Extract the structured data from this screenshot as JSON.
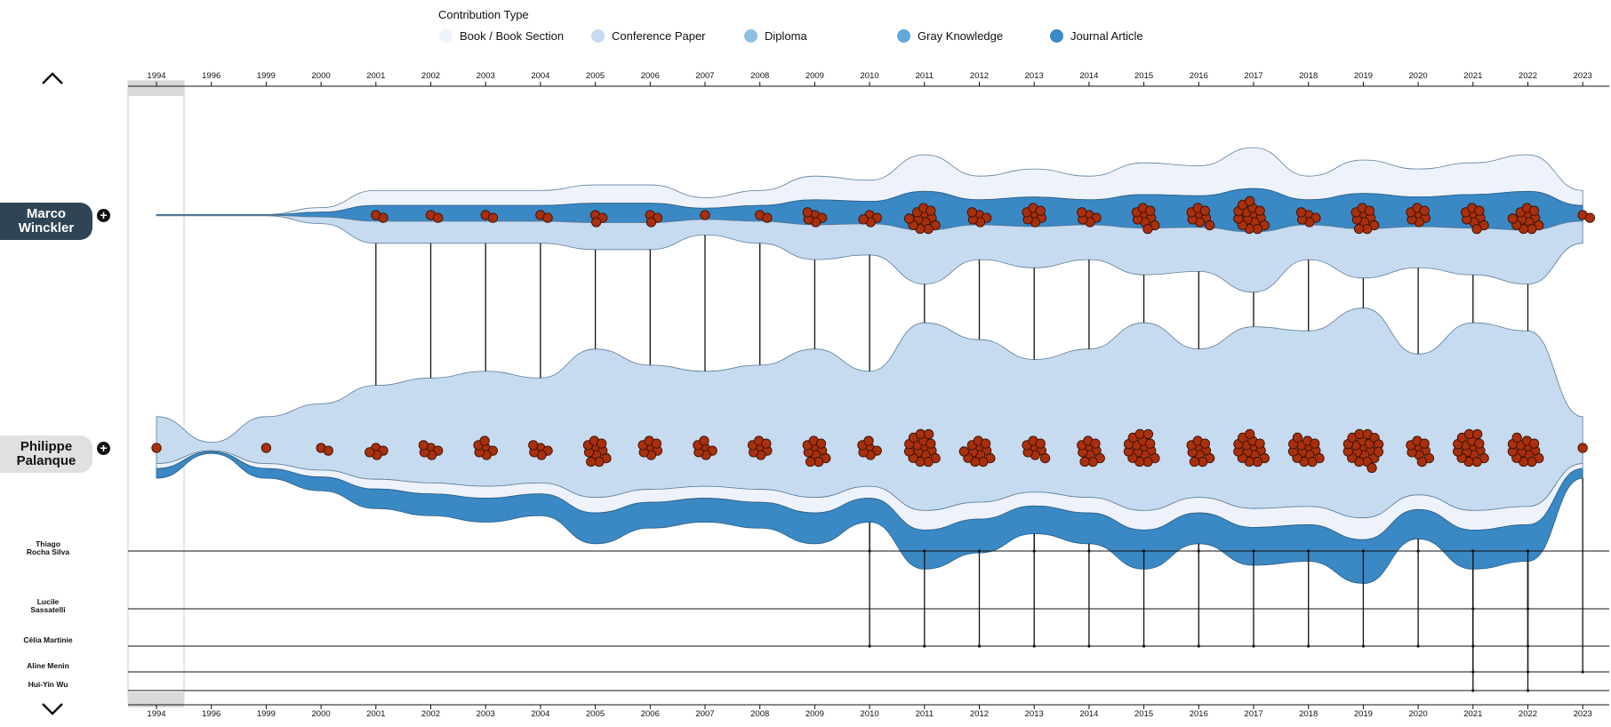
{
  "legend": {
    "title": "Contribution Type",
    "items": [
      {
        "label": "Book / Book Section",
        "color": "#eef2fb"
      },
      {
        "label": "Conference Paper",
        "color": "#c6daf0"
      },
      {
        "label": "Diploma",
        "color": "#8fbfe0"
      },
      {
        "label": "Gray Knowledge",
        "color": "#62a8d8"
      },
      {
        "label": "Journal Article",
        "color": "#3a88c4"
      }
    ]
  },
  "authors": {
    "main": {
      "name_line1": "Marco",
      "name_line2": "Winckler"
    },
    "second": {
      "name_line1": "Philippe",
      "name_line2": "Palanque"
    },
    "coauthors": [
      {
        "line1": "Thiago",
        "line2": "Rocha Silva"
      },
      {
        "line1": "Lucile",
        "line2": "Sassatelli"
      },
      {
        "line1": "Célia Martinie",
        "line2": ""
      },
      {
        "line1": "Aline Menin",
        "line2": ""
      },
      {
        "line1": "Hui-Yin Wu",
        "line2": ""
      }
    ]
  },
  "controls": {
    "plus_symbol": "+"
  },
  "chart_data": {
    "type": "area",
    "description_type": "stream-timeline",
    "years": [
      "1994",
      "1996",
      "1999",
      "2000",
      "2001",
      "2002",
      "2003",
      "2004",
      "2005",
      "2006",
      "2007",
      "2008",
      "2009",
      "2010",
      "2011",
      "2012",
      "2013",
      "2014",
      "2015",
      "2016",
      "2017",
      "2018",
      "2019",
      "2020",
      "2021",
      "2022",
      "2023"
    ],
    "series": [
      {
        "name": "Marco Winckler",
        "values": [
          0,
          0,
          0,
          0,
          2,
          2,
          2,
          2,
          3,
          3,
          1,
          2,
          5,
          4,
          12,
          5,
          7,
          5,
          9,
          8,
          15,
          5,
          10,
          7,
          9,
          12,
          2
        ]
      },
      {
        "name": "Philippe Palanque",
        "values": [
          1,
          0,
          1,
          2,
          4,
          5,
          6,
          5,
          10,
          7,
          6,
          7,
          10,
          6,
          16,
          12,
          8,
          10,
          16,
          10,
          15,
          14,
          20,
          9,
          16,
          14,
          1
        ]
      }
    ],
    "coauthor_links": {
      "Thiago Rocha Silva": [
        "2010",
        "2011",
        "2012",
        "2013",
        "2014",
        "2015",
        "2016",
        "2017",
        "2018",
        "2019",
        "2020",
        "2021",
        "2022"
      ],
      "Lucile Sassatelli": [
        "2021",
        "2022"
      ],
      "Célia Martinie": [
        "2010",
        "2011",
        "2012",
        "2013",
        "2014",
        "2015",
        "2016",
        "2017",
        "2018",
        "2019",
        "2020",
        "2021",
        "2022"
      ],
      "Aline Menin": [
        "2021",
        "2022",
        "2023"
      ],
      "Hui-Yin Wu": [
        "2021",
        "2022"
      ]
    }
  }
}
